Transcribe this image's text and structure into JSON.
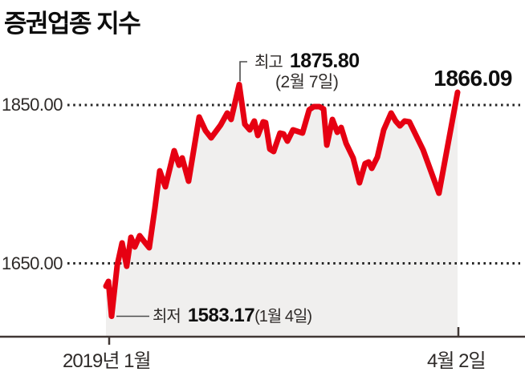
{
  "title": "증권업종 지수",
  "y_axis": [
    "1850.00",
    "1650.00"
  ],
  "x_axis": {
    "start": "2019년 1월",
    "end": "4월 2일"
  },
  "annotations": {
    "high": {
      "label": "최고",
      "value": "1875.80",
      "date": "(2월 7일)"
    },
    "low": {
      "label": "최저",
      "value": "1583.17",
      "date": "(1월 4일)"
    },
    "last": {
      "value": "1866.09"
    }
  },
  "colors": {
    "line": "#e60012",
    "area_fill": "#f0efee",
    "grid_dots": "#262626",
    "axis": "#403734",
    "leader": "#4d4d4d",
    "text_dark": "#0f0f0f",
    "text_gray": "#2e2a28"
  },
  "chart_data": {
    "type": "line",
    "title": "증권업종 지수",
    "x_axis": {
      "start_label": "2019년 1월",
      "end_label": "4월 2일"
    },
    "y_axis": {
      "gridlines": [
        1850,
        1650
      ],
      "tick_labels": [
        "1850.00",
        "1650.00"
      ],
      "approx_range": [
        1557,
        1886
      ]
    },
    "high": {
      "value": 1875.8,
      "date": "2월 7일"
    },
    "low": {
      "value": 1583.17,
      "date": "1월 4일"
    },
    "last": 1866.09,
    "legend": false,
    "grid": "dotted-horizontal",
    "series": [
      {
        "name": "증권업종 지수",
        "x_unit": "percent_of_period_2019-01-02_to_04-02",
        "points": [
          [
            0,
            1621.1
          ],
          [
            0.7,
            1627.2
          ],
          [
            1.6,
            1583.17
          ],
          [
            3.2,
            1647.5
          ],
          [
            4.6,
            1675.8
          ],
          [
            5.9,
            1646.4
          ],
          [
            7.1,
            1682.9
          ],
          [
            8.2,
            1670.8
          ],
          [
            9.6,
            1684.9
          ],
          [
            11,
            1676.8
          ],
          [
            12.3,
            1669.7
          ],
          [
            13.9,
            1719.3
          ],
          [
            15.3,
            1766.9
          ],
          [
            16.9,
            1746.7
          ],
          [
            19.4,
            1792.3
          ],
          [
            20.8,
            1774
          ],
          [
            21.7,
            1783.2
          ],
          [
            23.5,
            1753.8
          ],
          [
            26.5,
            1834.8
          ],
          [
            28.3,
            1817.6
          ],
          [
            29.9,
            1808.5
          ],
          [
            32.6,
            1824.7
          ],
          [
            34.5,
            1839.9
          ],
          [
            35.6,
            1831.8
          ],
          [
            37.9,
            1875.8
          ],
          [
            39.5,
            1825.7
          ],
          [
            40.9,
            1818.6
          ],
          [
            42.2,
            1829.7
          ],
          [
            43.2,
            1811.5
          ],
          [
            44.7,
            1828.7
          ],
          [
            45.4,
            1827.7
          ],
          [
            46.6,
            1794.3
          ],
          [
            47.7,
            1791.3
          ],
          [
            49.5,
            1814.6
          ],
          [
            50.5,
            1813.5
          ],
          [
            51.6,
            1804.4
          ],
          [
            53.2,
            1818.6
          ],
          [
            54.6,
            1816.6
          ],
          [
            55.9,
            1814.6
          ],
          [
            57.8,
            1844
          ],
          [
            59.1,
            1848
          ],
          [
            60.7,
            1848
          ],
          [
            61.9,
            1845
          ],
          [
            62.8,
            1799.4
          ],
          [
            64.4,
            1831.8
          ],
          [
            65.8,
            1815.6
          ],
          [
            66.9,
            1821.6
          ],
          [
            68.3,
            1801.4
          ],
          [
            70.3,
            1783.2
          ],
          [
            72.1,
            1751.8
          ],
          [
            73.7,
            1776.1
          ],
          [
            74.7,
            1778.1
          ],
          [
            75.6,
            1770
          ],
          [
            77.2,
            1784.2
          ],
          [
            79,
            1818.6
          ],
          [
            81.1,
            1839.9
          ],
          [
            82.4,
            1829.7
          ],
          [
            83.6,
            1823.7
          ],
          [
            84.9,
            1829.7
          ],
          [
            86.3,
            1828.7
          ],
          [
            90.2,
            1793.3
          ],
          [
            94.7,
            1738.6
          ],
          [
            100,
            1866.09
          ]
        ]
      }
    ]
  }
}
